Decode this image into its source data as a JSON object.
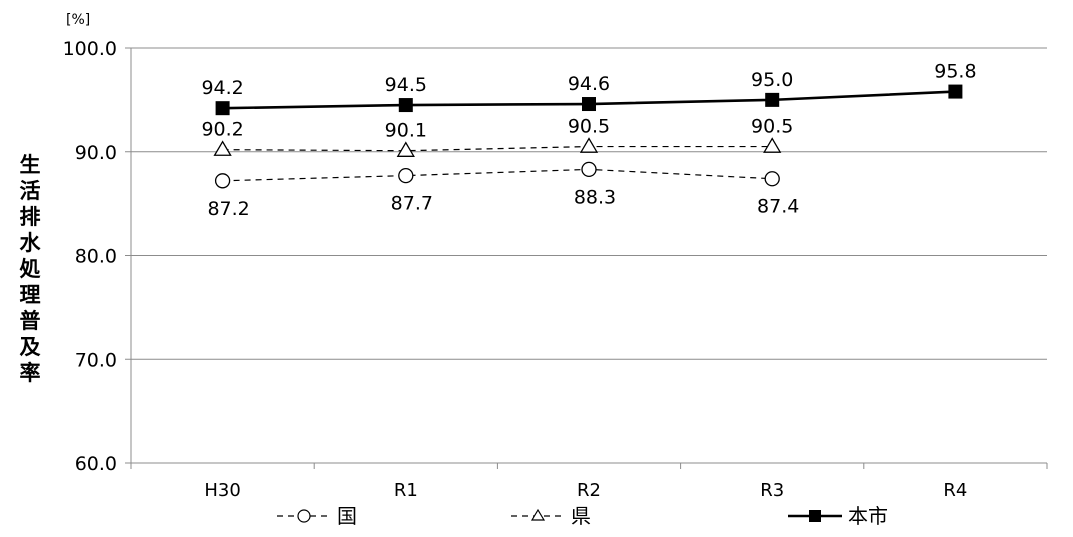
{
  "chart_data": {
    "type": "line",
    "title": "",
    "xlabel": "",
    "ylabel": "生活排水処理普及率",
    "unit_label": "[%]",
    "categories": [
      "H30",
      "R1",
      "R2",
      "R3",
      "R4"
    ],
    "ylim": [
      60,
      100
    ],
    "yticks": [
      60,
      70,
      80,
      90,
      100
    ],
    "ytick_labels": [
      "60.0",
      "70.0",
      "80.0",
      "90.0",
      "100.0"
    ],
    "grid": true,
    "legend_position": "bottom",
    "series": [
      {
        "name": "国",
        "values": [
          87.2,
          87.7,
          88.3,
          87.4,
          null
        ],
        "labels": [
          "87.2",
          "87.7",
          "88.3",
          "87.4",
          null
        ],
        "label_placement": "below",
        "line_style": "dashed",
        "marker": "circle",
        "color": "#000000"
      },
      {
        "name": "県",
        "values": [
          90.2,
          90.1,
          90.5,
          90.5,
          null
        ],
        "labels": [
          "90.2",
          "90.1",
          "90.5",
          "90.5",
          null
        ],
        "label_placement": "above",
        "line_style": "dashed",
        "marker": "triangle",
        "color": "#000000"
      },
      {
        "name": "本市",
        "values": [
          94.2,
          94.5,
          94.6,
          95.0,
          95.8
        ],
        "labels": [
          "94.2",
          "94.5",
          "94.6",
          "95.0",
          "95.8"
        ],
        "label_placement": "above",
        "line_style": "solid",
        "marker": "square",
        "color": "#000000"
      }
    ]
  }
}
